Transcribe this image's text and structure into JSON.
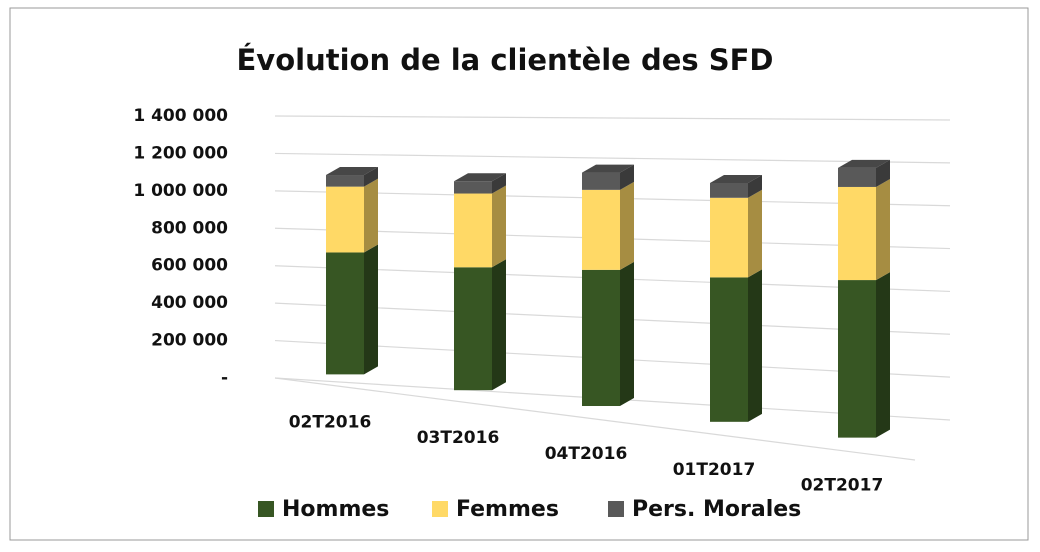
{
  "chart_data": {
    "type": "bar3d_stacked",
    "title": "Évolution de la clientèle des SFD",
    "categories": [
      "02T2016",
      "03T2016",
      "04T2016",
      "01T2017",
      "02T2017"
    ],
    "series": [
      {
        "name": "Hommes",
        "color": "#375623",
        "values": [
          630000,
          600000,
          630000,
          635000,
          660000
        ]
      },
      {
        "name": "Femmes",
        "color": "#ffd966",
        "values": [
          340000,
          360000,
          370000,
          350000,
          390000
        ]
      },
      {
        "name": "Pers. Morales",
        "color": "#595959",
        "values": [
          60000,
          60000,
          80000,
          65000,
          80000
        ]
      }
    ],
    "ylim": [
      0,
      1400000
    ],
    "yticks": [
      {
        "value": 0,
        "label": "-"
      },
      {
        "value": 200000,
        "label": "200 000"
      },
      {
        "value": 400000,
        "label": "400 000"
      },
      {
        "value": 600000,
        "label": "600 000"
      },
      {
        "value": 800000,
        "label": "800 000"
      },
      {
        "value": 1000000,
        "label": "1 000 000"
      },
      {
        "value": 1200000,
        "label": "1 200 000"
      },
      {
        "value": 1400000,
        "label": "1 400 000"
      }
    ],
    "grid": true,
    "legend": "bottom"
  }
}
